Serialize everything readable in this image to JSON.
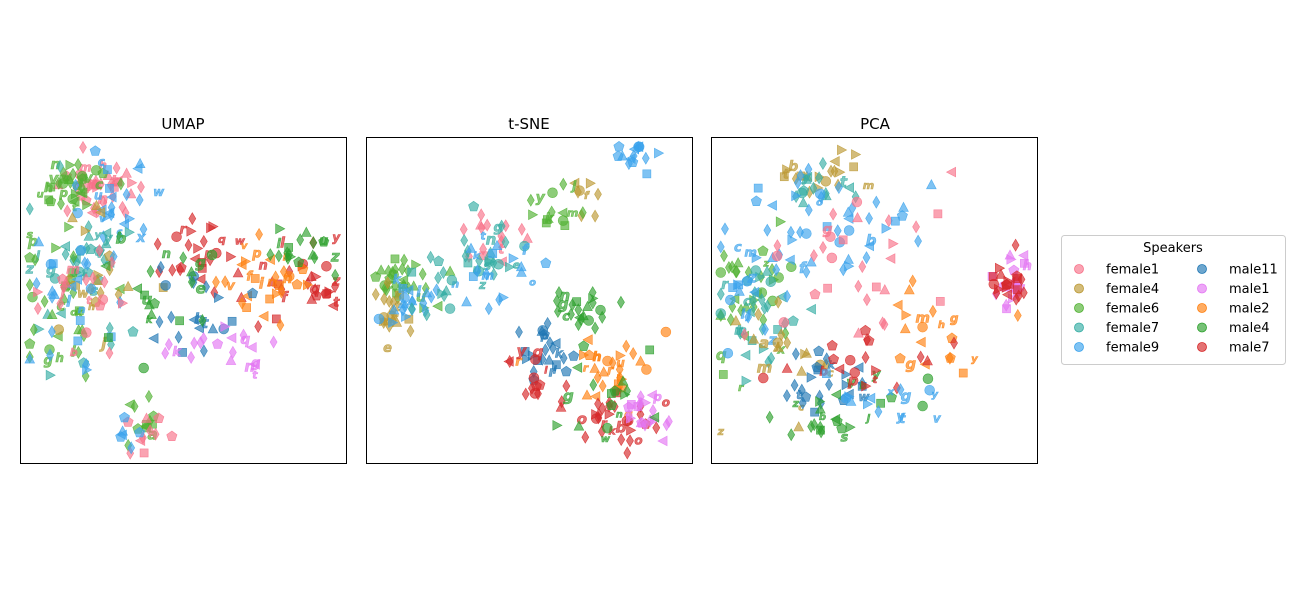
{
  "figure": {
    "legend": {
      "title": "Speakers",
      "placement": "right of PCA panel, center",
      "columns": 2,
      "entries": [
        {
          "name": "female1",
          "color": "#f77189"
        },
        {
          "name": "female4",
          "color": "#bb9832"
        },
        {
          "name": "female6",
          "color": "#50b131"
        },
        {
          "name": "female7",
          "color": "#36ada4"
        },
        {
          "name": "female9",
          "color": "#3ba3ec"
        },
        {
          "name": "male11",
          "color": "#1f77b4"
        },
        {
          "name": "male1",
          "color": "#e377f2"
        },
        {
          "name": "male2",
          "color": "#ff7f0e"
        },
        {
          "name": "male4",
          "color": "#2ca02c"
        },
        {
          "name": "male7",
          "color": "#d62728"
        }
      ]
    }
  },
  "chart_data": [
    {
      "type": "scatter",
      "title": "UMAP",
      "xlabel": "",
      "ylabel": "",
      "ticks": false,
      "grid": false,
      "xlim": [
        0,
        100
      ],
      "ylim": [
        0,
        100
      ],
      "clusters": [
        {
          "speaker": "female1",
          "cx": 25,
          "cy": 85,
          "sx": 6,
          "sy": 5,
          "n": 40
        },
        {
          "speaker": "female6",
          "cx": 15,
          "cy": 85,
          "sx": 5,
          "sy": 5,
          "n": 35
        },
        {
          "speaker": "female9",
          "cx": 30,
          "cy": 80,
          "sx": 7,
          "sy": 6,
          "n": 25
        },
        {
          "speaker": "female7",
          "cx": 20,
          "cy": 60,
          "sx": 8,
          "sy": 10,
          "n": 40
        },
        {
          "speaker": "female6",
          "cx": 15,
          "cy": 50,
          "sx": 8,
          "sy": 12,
          "n": 35
        },
        {
          "speaker": "female4",
          "cx": 25,
          "cy": 55,
          "sx": 7,
          "sy": 10,
          "n": 20
        },
        {
          "speaker": "female9",
          "cx": 18,
          "cy": 45,
          "sx": 7,
          "sy": 10,
          "n": 25
        },
        {
          "speaker": "female1",
          "cx": 18,
          "cy": 52,
          "sx": 6,
          "sy": 8,
          "n": 20
        },
        {
          "speaker": "male7",
          "cx": 55,
          "cy": 65,
          "sx": 8,
          "sy": 5,
          "n": 25
        },
        {
          "speaker": "male7",
          "cx": 85,
          "cy": 55,
          "sx": 7,
          "sy": 6,
          "n": 30
        },
        {
          "speaker": "male2",
          "cx": 75,
          "cy": 55,
          "sx": 8,
          "sy": 7,
          "n": 30
        },
        {
          "speaker": "male4",
          "cx": 80,
          "cy": 65,
          "sx": 8,
          "sy": 5,
          "n": 20
        },
        {
          "speaker": "male11",
          "cx": 55,
          "cy": 45,
          "sx": 8,
          "sy": 6,
          "n": 20
        },
        {
          "speaker": "male1",
          "cx": 65,
          "cy": 38,
          "sx": 9,
          "sy": 5,
          "n": 20
        },
        {
          "speaker": "male4",
          "cx": 45,
          "cy": 50,
          "sx": 9,
          "sy": 8,
          "n": 20
        },
        {
          "speaker": "female6",
          "cx": 38,
          "cy": 15,
          "sx": 3,
          "sy": 4,
          "n": 12
        },
        {
          "speaker": "female1",
          "cx": 38,
          "cy": 8,
          "sx": 3,
          "sy": 3,
          "n": 10
        },
        {
          "speaker": "female9",
          "cx": 33,
          "cy": 10,
          "sx": 3,
          "sy": 3,
          "n": 6
        }
      ]
    },
    {
      "type": "scatter",
      "title": "t-SNE",
      "xlabel": "",
      "ylabel": "",
      "ticks": false,
      "grid": false,
      "xlim": [
        0,
        100
      ],
      "ylim": [
        0,
        100
      ],
      "clusters": [
        {
          "speaker": "female9",
          "cx": 80,
          "cy": 94,
          "sx": 4,
          "sy": 3,
          "n": 15
        },
        {
          "speaker": "female4",
          "cx": 68,
          "cy": 85,
          "sx": 5,
          "sy": 4,
          "n": 8
        },
        {
          "speaker": "female6",
          "cx": 56,
          "cy": 77,
          "sx": 6,
          "sy": 4,
          "n": 15
        },
        {
          "speaker": "female1",
          "cx": 40,
          "cy": 70,
          "sx": 6,
          "sy": 4,
          "n": 15
        },
        {
          "speaker": "female7",
          "cx": 38,
          "cy": 63,
          "sx": 7,
          "sy": 6,
          "n": 25
        },
        {
          "speaker": "female9",
          "cx": 40,
          "cy": 60,
          "sx": 7,
          "sy": 6,
          "n": 20
        },
        {
          "speaker": "female6",
          "cx": 12,
          "cy": 55,
          "sx": 6,
          "sy": 5,
          "n": 30
        },
        {
          "speaker": "female4",
          "cx": 8,
          "cy": 47,
          "sx": 4,
          "sy": 5,
          "n": 20
        },
        {
          "speaker": "female9",
          "cx": 12,
          "cy": 48,
          "sx": 5,
          "sy": 4,
          "n": 20
        },
        {
          "speaker": "female7",
          "cx": 24,
          "cy": 52,
          "sx": 5,
          "sy": 5,
          "n": 10
        },
        {
          "speaker": "male11",
          "cx": 55,
          "cy": 35,
          "sx": 6,
          "sy": 5,
          "n": 25
        },
        {
          "speaker": "male4",
          "cx": 67,
          "cy": 42,
          "sx": 7,
          "sy": 6,
          "n": 25
        },
        {
          "speaker": "male2",
          "cx": 75,
          "cy": 28,
          "sx": 7,
          "sy": 8,
          "n": 30
        },
        {
          "speaker": "male7",
          "cx": 78,
          "cy": 12,
          "sx": 6,
          "sy": 5,
          "n": 30
        },
        {
          "speaker": "male1",
          "cx": 85,
          "cy": 18,
          "sx": 5,
          "sy": 6,
          "n": 20
        },
        {
          "speaker": "male7",
          "cx": 50,
          "cy": 25,
          "sx": 5,
          "sy": 5,
          "n": 15
        },
        {
          "speaker": "male4",
          "cx": 72,
          "cy": 20,
          "sx": 8,
          "sy": 6,
          "n": 15
        }
      ]
    },
    {
      "type": "scatter",
      "title": "PCA",
      "xlabel": "",
      "ylabel": "",
      "ticks": false,
      "grid": false,
      "xlim": [
        0,
        100
      ],
      "ylim": [
        0,
        100
      ],
      "clusters": [
        {
          "speaker": "female4",
          "cx": 35,
          "cy": 88,
          "sx": 8,
          "sy": 4,
          "n": 20
        },
        {
          "speaker": "female7",
          "cx": 35,
          "cy": 85,
          "sx": 6,
          "sy": 4,
          "n": 15
        },
        {
          "speaker": "female9",
          "cx": 30,
          "cy": 75,
          "sx": 10,
          "sy": 8,
          "n": 25
        },
        {
          "speaker": "female6",
          "cx": 12,
          "cy": 50,
          "sx": 6,
          "sy": 12,
          "n": 35
        },
        {
          "speaker": "female7",
          "cx": 15,
          "cy": 45,
          "sx": 6,
          "sy": 10,
          "n": 30
        },
        {
          "speaker": "female9",
          "cx": 14,
          "cy": 55,
          "sx": 6,
          "sy": 10,
          "n": 25
        },
        {
          "speaker": "female4",
          "cx": 20,
          "cy": 35,
          "sx": 7,
          "sy": 10,
          "n": 20
        },
        {
          "speaker": "female1",
          "cx": 45,
          "cy": 60,
          "sx": 15,
          "sy": 12,
          "n": 30
        },
        {
          "speaker": "female9",
          "cx": 55,
          "cy": 70,
          "sx": 12,
          "sy": 6,
          "n": 15
        },
        {
          "speaker": "male1",
          "cx": 92,
          "cy": 55,
          "sx": 3,
          "sy": 5,
          "n": 20
        },
        {
          "speaker": "male7",
          "cx": 90,
          "cy": 55,
          "sx": 3,
          "sy": 5,
          "n": 20
        },
        {
          "speaker": "male2",
          "cx": 68,
          "cy": 40,
          "sx": 8,
          "sy": 7,
          "n": 20
        },
        {
          "speaker": "male11",
          "cx": 35,
          "cy": 25,
          "sx": 10,
          "sy": 6,
          "n": 25
        },
        {
          "speaker": "male4",
          "cx": 40,
          "cy": 15,
          "sx": 12,
          "sy": 4,
          "n": 25
        },
        {
          "speaker": "male7",
          "cx": 45,
          "cy": 30,
          "sx": 12,
          "sy": 6,
          "n": 20
        },
        {
          "speaker": "female9",
          "cx": 50,
          "cy": 20,
          "sx": 12,
          "sy": 5,
          "n": 15
        }
      ]
    }
  ]
}
